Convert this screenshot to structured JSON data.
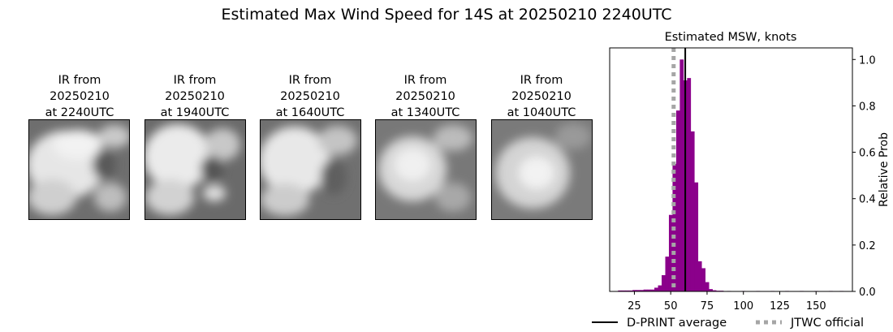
{
  "figure": {
    "title": "Estimated Max Wind Speed for 14S at 20250210 2240UTC"
  },
  "ir_images": [
    {
      "line1": "IR from",
      "line2": "20250210",
      "line3": "at 2240UTC",
      "icon": "ir-satellite-image"
    },
    {
      "line1": "IR from",
      "line2": "20250210",
      "line3": "at 1940UTC",
      "icon": "ir-satellite-image"
    },
    {
      "line1": "IR from",
      "line2": "20250210",
      "line3": "at 1640UTC",
      "icon": "ir-satellite-image"
    },
    {
      "line1": "IR from",
      "line2": "20250210",
      "line3": "at 1340UTC",
      "icon": "ir-satellite-image"
    },
    {
      "line1": "IR from",
      "line2": "20250210",
      "line3": "at 1040UTC",
      "icon": "ir-satellite-image"
    }
  ],
  "chart_data": {
    "type": "bar",
    "title": "Estimated MSW, knots",
    "xlabel": "",
    "ylabel": "Relative Prob",
    "xlim": [
      8,
      175
    ],
    "ylim": [
      0,
      1.05
    ],
    "xticks": [
      25,
      50,
      75,
      100,
      125,
      150
    ],
    "yticks": [
      0.0,
      0.2,
      0.4,
      0.6,
      0.8,
      1.0
    ],
    "ytick_labels": [
      "0.0",
      "0.2",
      "0.4",
      "0.6",
      "0.8",
      "1.0"
    ],
    "bin_width": 2.5,
    "bar_color": "#8b008b",
    "bins": [
      {
        "x": 15,
        "y": 0.004
      },
      {
        "x": 17.5,
        "y": 0.004
      },
      {
        "x": 20,
        "y": 0.004
      },
      {
        "x": 22.5,
        "y": 0.004
      },
      {
        "x": 25,
        "y": 0.006
      },
      {
        "x": 27.5,
        "y": 0.006
      },
      {
        "x": 30,
        "y": 0.006
      },
      {
        "x": 32.5,
        "y": 0.008
      },
      {
        "x": 35,
        "y": 0.008
      },
      {
        "x": 37.5,
        "y": 0.008
      },
      {
        "x": 40,
        "y": 0.016
      },
      {
        "x": 42.5,
        "y": 0.026
      },
      {
        "x": 45,
        "y": 0.07
      },
      {
        "x": 47.5,
        "y": 0.15
      },
      {
        "x": 50,
        "y": 0.33
      },
      {
        "x": 52.5,
        "y": 0.55
      },
      {
        "x": 55,
        "y": 0.78
      },
      {
        "x": 57.5,
        "y": 1.0
      },
      {
        "x": 60,
        "y": 0.91
      },
      {
        "x": 62.5,
        "y": 0.92
      },
      {
        "x": 65,
        "y": 0.69
      },
      {
        "x": 67.5,
        "y": 0.47
      },
      {
        "x": 70,
        "y": 0.13
      },
      {
        "x": 72.5,
        "y": 0.1
      },
      {
        "x": 75,
        "y": 0.04
      },
      {
        "x": 77.5,
        "y": 0.01
      },
      {
        "x": 80,
        "y": 0.005
      },
      {
        "x": 82.5,
        "y": 0.003
      },
      {
        "x": 85,
        "y": 0.003
      },
      {
        "x": 90,
        "y": 0.002
      },
      {
        "x": 100,
        "y": 0.002
      },
      {
        "x": 110,
        "y": 0.002
      },
      {
        "x": 120,
        "y": 0.002
      },
      {
        "x": 130,
        "y": 0.002
      },
      {
        "x": 140,
        "y": 0.002
      },
      {
        "x": 150,
        "y": 0.002
      },
      {
        "x": 160,
        "y": 0.002
      },
      {
        "x": 167.5,
        "y": 0.002
      }
    ],
    "dprint_average": 60,
    "jtwc_official": 52,
    "lines": [
      {
        "name": "D-PRINT average",
        "color": "#000000",
        "style": "solid"
      },
      {
        "name": "JTWC official",
        "color": "#a6a6a6",
        "style": "dotted"
      }
    ]
  },
  "legend": {
    "dprint_label": "D-PRINT average",
    "jtwc_label": "JTWC official"
  }
}
